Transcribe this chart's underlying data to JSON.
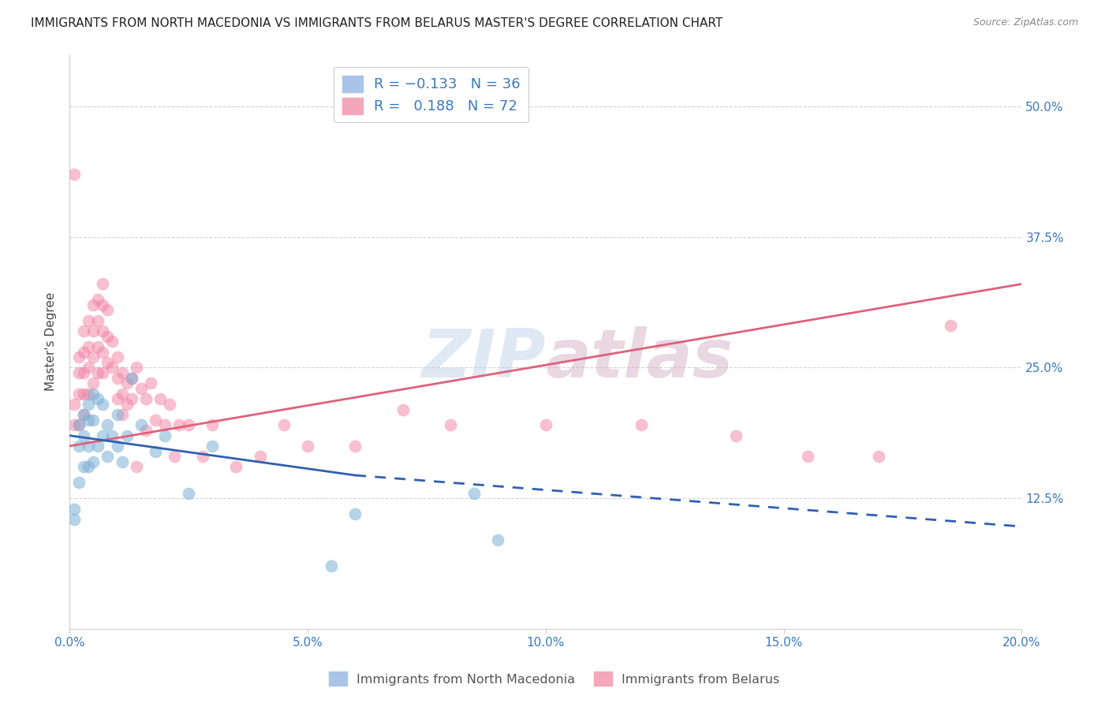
{
  "title": "IMMIGRANTS FROM NORTH MACEDONIA VS IMMIGRANTS FROM BELARUS MASTER'S DEGREE CORRELATION CHART",
  "source_text": "Source: ZipAtlas.com",
  "ylabel": "Master's Degree",
  "xlim": [
    0.0,
    0.2
  ],
  "ylim": [
    0.0,
    0.55
  ],
  "xtick_labels": [
    "0.0%",
    "5.0%",
    "10.0%",
    "15.0%",
    "20.0%"
  ],
  "xtick_vals": [
    0.0,
    0.05,
    0.1,
    0.15,
    0.2
  ],
  "ytick_labels": [
    "12.5%",
    "25.0%",
    "37.5%",
    "50.0%"
  ],
  "ytick_vals": [
    0.125,
    0.25,
    0.375,
    0.5
  ],
  "series1_color": "#7bafd4",
  "series2_color": "#f080a0",
  "watermark": "ZIPatlas",
  "series1_R": -0.133,
  "series1_N": 36,
  "series2_R": 0.188,
  "series2_N": 72,
  "series1_x": [
    0.001,
    0.001,
    0.002,
    0.002,
    0.002,
    0.003,
    0.003,
    0.003,
    0.004,
    0.004,
    0.004,
    0.004,
    0.005,
    0.005,
    0.005,
    0.006,
    0.006,
    0.007,
    0.007,
    0.008,
    0.008,
    0.009,
    0.01,
    0.01,
    0.011,
    0.012,
    0.013,
    0.015,
    0.018,
    0.02,
    0.025,
    0.03,
    0.055,
    0.06,
    0.085,
    0.09
  ],
  "series1_y": [
    0.115,
    0.105,
    0.195,
    0.175,
    0.14,
    0.205,
    0.185,
    0.155,
    0.215,
    0.2,
    0.175,
    0.155,
    0.225,
    0.2,
    0.16,
    0.22,
    0.175,
    0.215,
    0.185,
    0.195,
    0.165,
    0.185,
    0.205,
    0.175,
    0.16,
    0.185,
    0.24,
    0.195,
    0.17,
    0.185,
    0.13,
    0.175,
    0.06,
    0.11,
    0.13,
    0.085
  ],
  "series2_x": [
    0.001,
    0.001,
    0.001,
    0.002,
    0.002,
    0.002,
    0.002,
    0.003,
    0.003,
    0.003,
    0.003,
    0.003,
    0.004,
    0.004,
    0.004,
    0.004,
    0.005,
    0.005,
    0.005,
    0.005,
    0.006,
    0.006,
    0.006,
    0.006,
    0.007,
    0.007,
    0.007,
    0.007,
    0.007,
    0.008,
    0.008,
    0.008,
    0.009,
    0.009,
    0.01,
    0.01,
    0.01,
    0.011,
    0.011,
    0.011,
    0.012,
    0.012,
    0.013,
    0.013,
    0.014,
    0.014,
    0.015,
    0.016,
    0.016,
    0.017,
    0.018,
    0.019,
    0.02,
    0.021,
    0.022,
    0.023,
    0.025,
    0.028,
    0.03,
    0.035,
    0.04,
    0.045,
    0.05,
    0.06,
    0.07,
    0.08,
    0.1,
    0.12,
    0.14,
    0.155,
    0.17,
    0.185
  ],
  "series2_y": [
    0.435,
    0.215,
    0.195,
    0.26,
    0.245,
    0.225,
    0.195,
    0.285,
    0.265,
    0.245,
    0.225,
    0.205,
    0.295,
    0.27,
    0.25,
    0.225,
    0.31,
    0.285,
    0.26,
    0.235,
    0.315,
    0.295,
    0.27,
    0.245,
    0.33,
    0.31,
    0.285,
    0.265,
    0.245,
    0.305,
    0.28,
    0.255,
    0.275,
    0.25,
    0.26,
    0.24,
    0.22,
    0.245,
    0.225,
    0.205,
    0.235,
    0.215,
    0.24,
    0.22,
    0.25,
    0.155,
    0.23,
    0.22,
    0.19,
    0.235,
    0.2,
    0.22,
    0.195,
    0.215,
    0.165,
    0.195,
    0.195,
    0.165,
    0.195,
    0.155,
    0.165,
    0.195,
    0.175,
    0.175,
    0.21,
    0.195,
    0.195,
    0.195,
    0.185,
    0.165,
    0.165,
    0.29
  ],
  "trend1_x0": 0.0,
  "trend1_y0": 0.185,
  "trend1_x1_solid": 0.06,
  "trend1_y1_solid": 0.147,
  "trend1_x1_dash": 0.2,
  "trend1_y1_dash": 0.098,
  "trend2_x0": 0.0,
  "trend2_y0": 0.175,
  "trend2_x1": 0.2,
  "trend2_y1": 0.33
}
